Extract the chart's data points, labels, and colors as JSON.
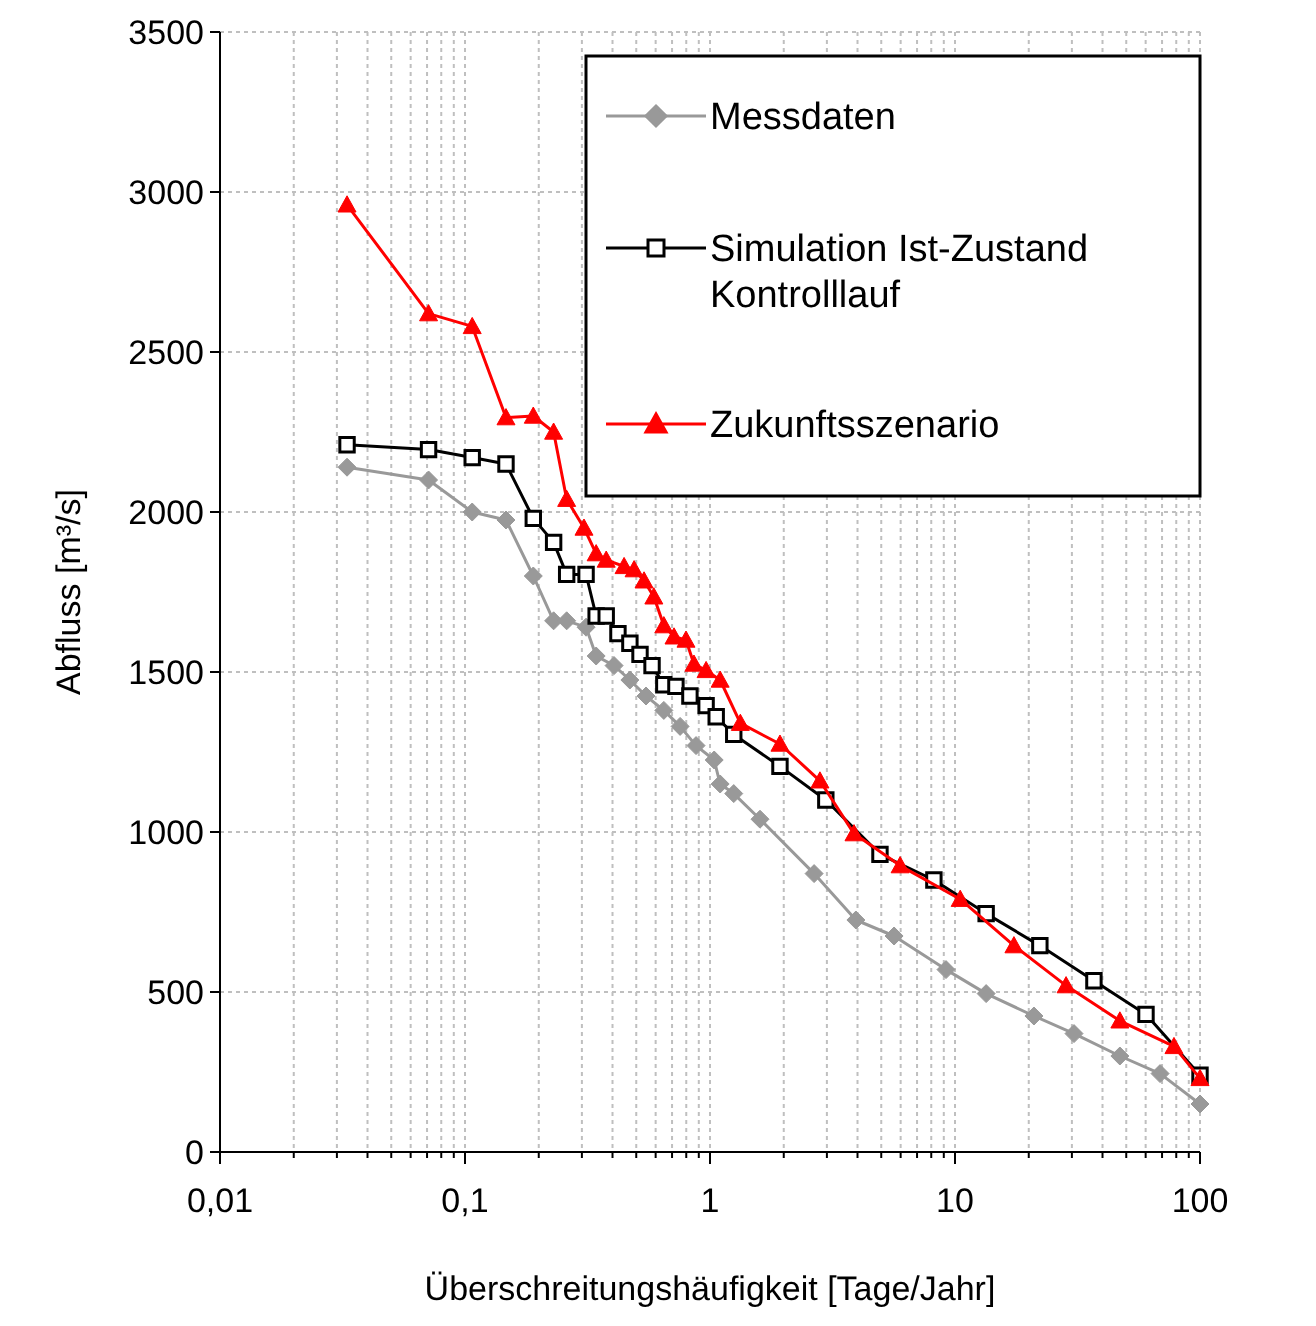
{
  "chart_data": {
    "type": "line",
    "xlabel": "Überschreitungshäufigkeit [Tage/Jahr]",
    "ylabel": "Abfluss [m³/s]",
    "log": "x",
    "xlim": [
      0.01,
      100
    ],
    "ylim": [
      0,
      3500
    ],
    "xticks": [
      {
        "value": 0.01,
        "label": "0,01"
      },
      {
        "value": 0.1,
        "label": "0,1"
      },
      1,
      10,
      100
    ],
    "yticks": [
      0,
      500,
      1000,
      1500,
      2000,
      2500,
      3000,
      3500
    ],
    "grid": true,
    "legend": "top right",
    "series": [
      {
        "name": "Messdaten",
        "color": "#999999",
        "marker": "diamond",
        "x": [
          0.033,
          0.071,
          0.107,
          0.147,
          0.19,
          0.23,
          0.26,
          0.312,
          0.343,
          0.406,
          0.471,
          0.548,
          0.648,
          0.755,
          0.877,
          1.04,
          1.1,
          1.25,
          1.6,
          2.66,
          3.94,
          5.64,
          9.19,
          13.4,
          21,
          30.6,
          47.1,
          68.7,
          100
        ],
        "values": [
          2140,
          2100,
          2000,
          1975,
          1800,
          1660,
          1660,
          1640,
          1550,
          1520,
          1475,
          1425,
          1380,
          1330,
          1270,
          1225,
          1150,
          1120,
          1040,
          870,
          725,
          675,
          570,
          495,
          425,
          370,
          300,
          245,
          150
        ]
      },
      {
        "name": "Simulation Ist-Zustand\nKontrolllauf",
        "color": "#000000",
        "marker": "square",
        "x": [
          0.033,
          0.071,
          0.107,
          0.147,
          0.19,
          0.23,
          0.26,
          0.312,
          0.343,
          0.377,
          0.421,
          0.471,
          0.518,
          0.58,
          0.648,
          0.726,
          0.828,
          0.964,
          1.06,
          1.25,
          1.93,
          2.97,
          4.94,
          8.2,
          13.4,
          22.2,
          36.9,
          60.2,
          100
        ],
        "values": [
          2210,
          2195,
          2170,
          2150,
          1980,
          1905,
          1805,
          1805,
          1675,
          1675,
          1620,
          1590,
          1555,
          1520,
          1460,
          1455,
          1425,
          1395,
          1360,
          1305,
          1205,
          1100,
          930,
          850,
          745,
          645,
          535,
          430,
          240
        ]
      },
      {
        "name": "Zukunftsszenario",
        "color": "#ff0000",
        "marker": "triangle",
        "x": [
          0.033,
          0.071,
          0.107,
          0.147,
          0.19,
          0.23,
          0.26,
          0.306,
          0.343,
          0.377,
          0.446,
          0.49,
          0.538,
          0.59,
          0.648,
          0.713,
          0.798,
          0.86,
          0.964,
          1.1,
          1.33,
          1.93,
          2.81,
          3.87,
          5.97,
          10.5,
          17.4,
          28.4,
          47.1,
          78.3,
          100
        ],
        "values": [
          2960,
          2620,
          2580,
          2295,
          2300,
          2250,
          2040,
          1950,
          1870,
          1850,
          1830,
          1820,
          1785,
          1735,
          1645,
          1610,
          1600,
          1525,
          1505,
          1475,
          1340,
          1275,
          1160,
          995,
          895,
          790,
          645,
          520,
          410,
          330,
          230
        ]
      }
    ]
  }
}
